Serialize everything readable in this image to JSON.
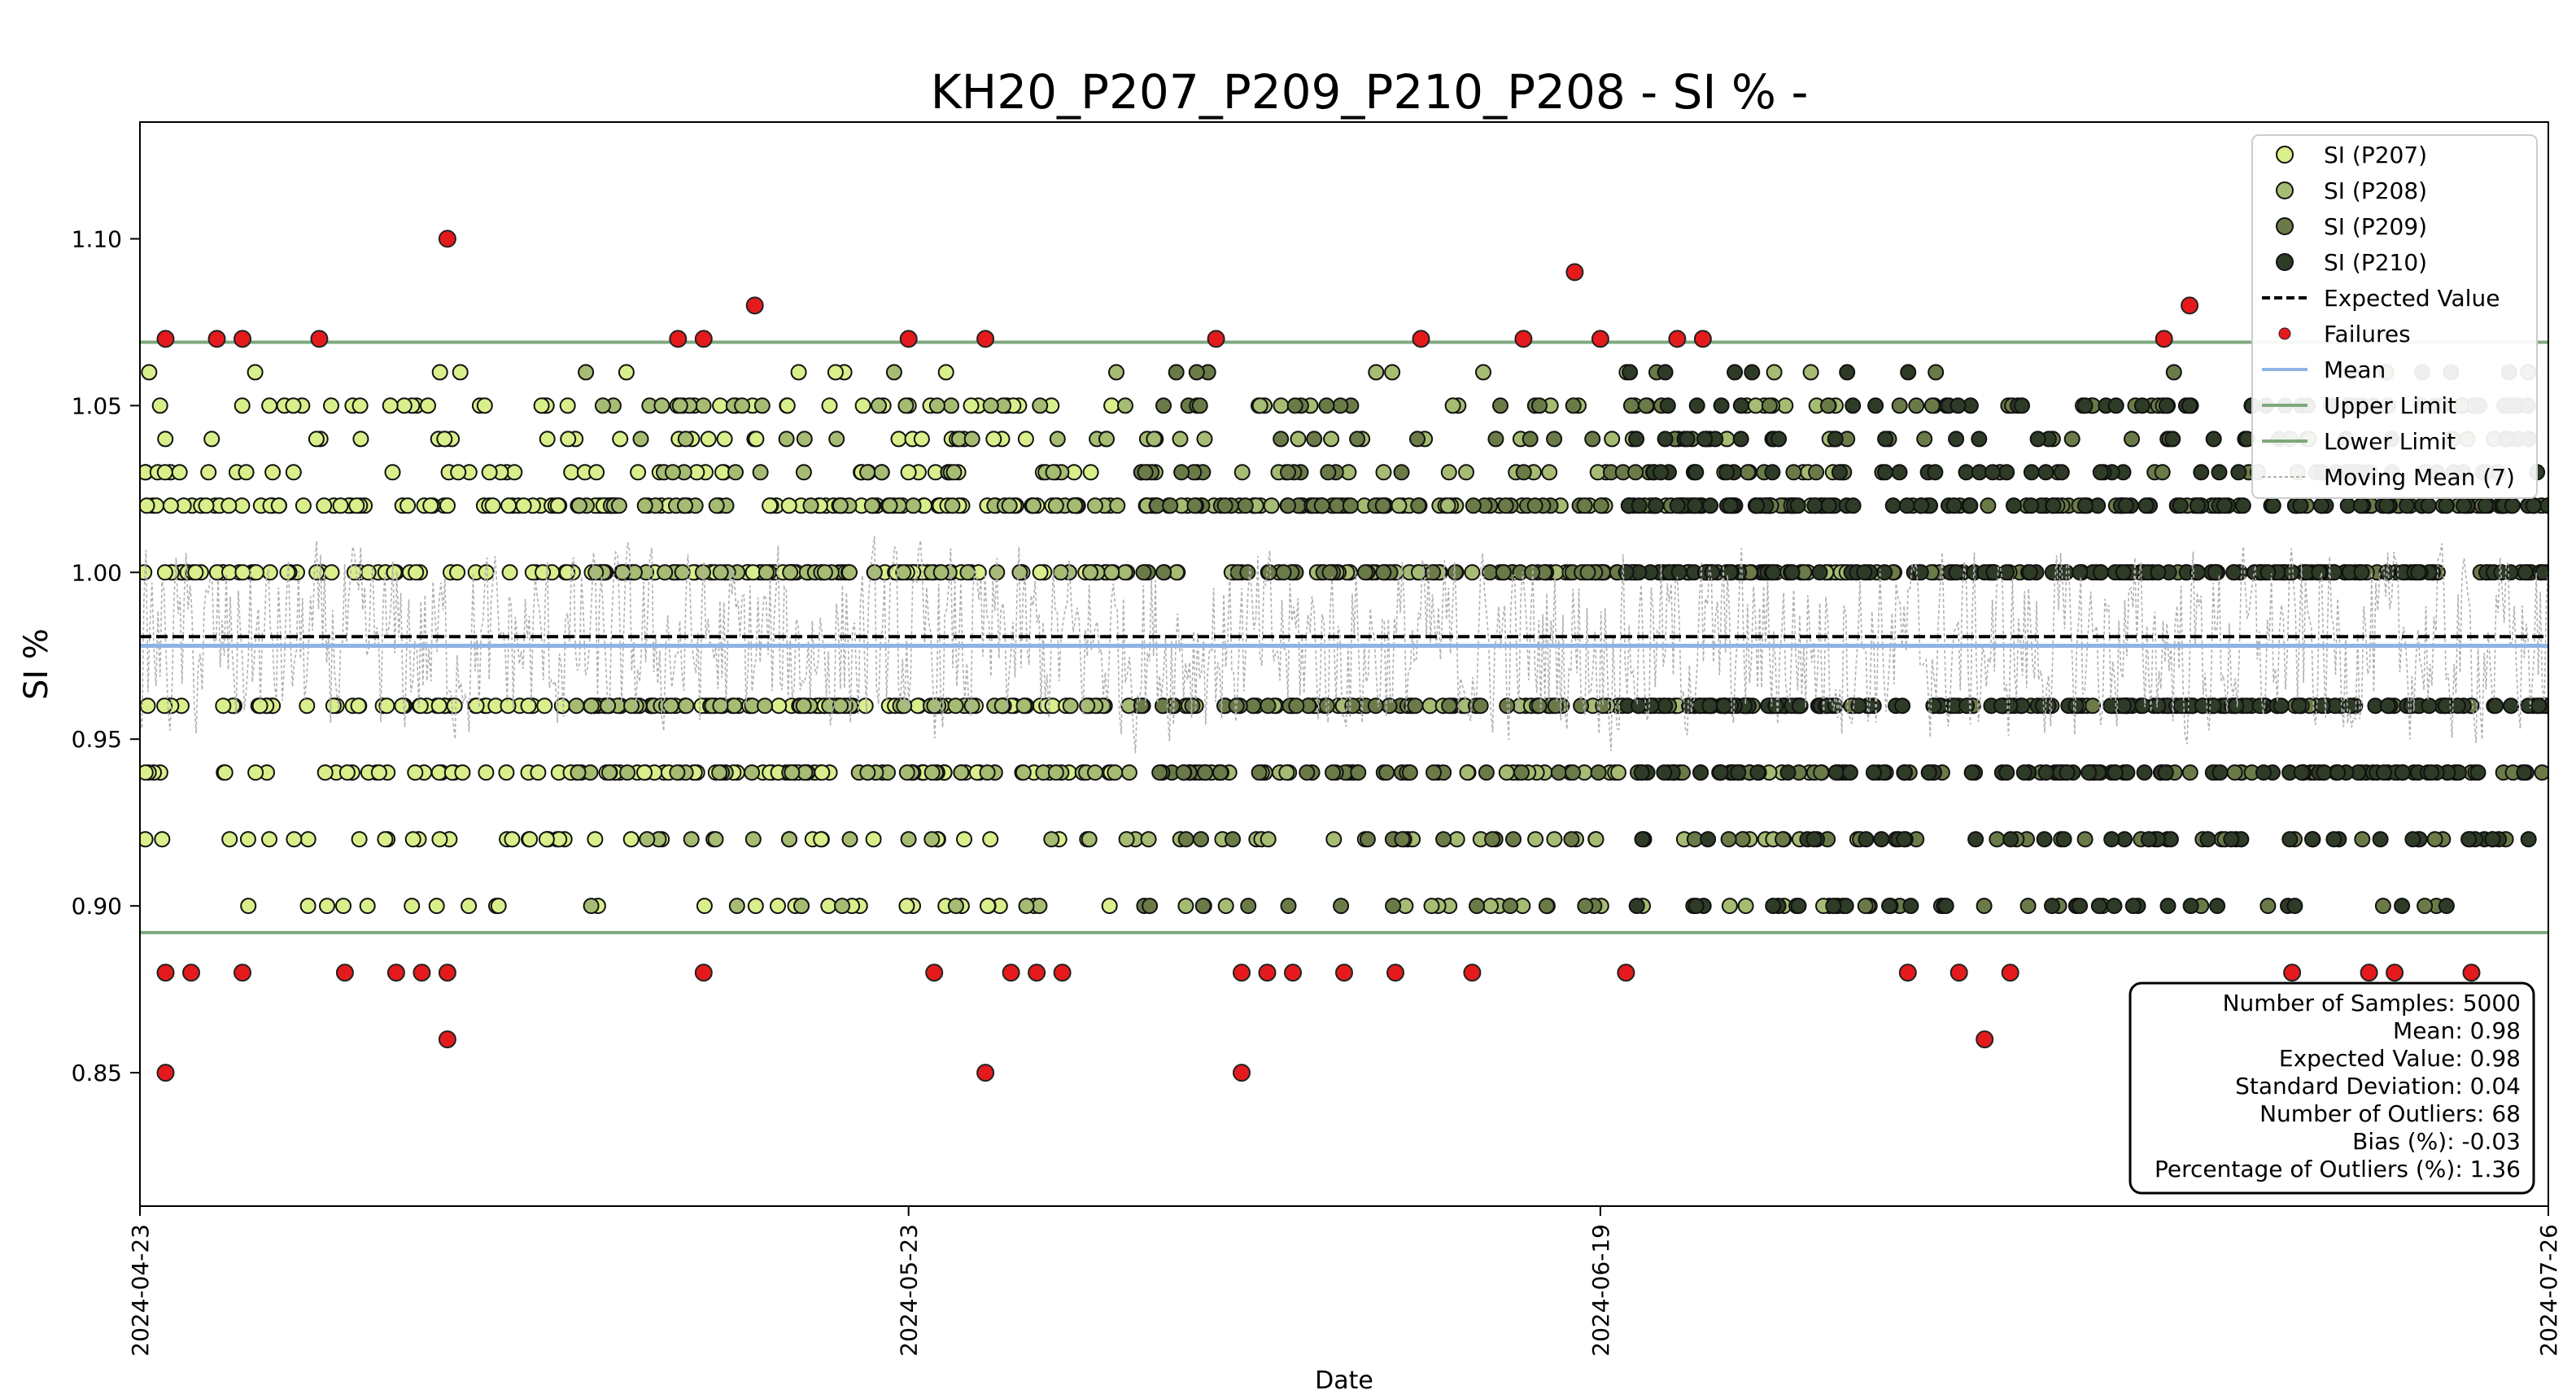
{
  "chart_data": {
    "type": "scatter",
    "title": "KH20_P207_P209_P210_P208 - SI % -",
    "xlabel": "Date",
    "ylabel": "SI %",
    "x_range": [
      "2024-04-23",
      "2024-07-26"
    ],
    "ylim": [
      0.81,
      1.135
    ],
    "x_ticks": [
      "2024-04-23",
      "2024-05-23",
      "2024-06-19",
      "2024-07-26"
    ],
    "y_ticks": [
      "0.85",
      "0.90",
      "0.95",
      "1.00",
      "1.05",
      "1.10"
    ],
    "y_tick_values": [
      0.85,
      0.9,
      0.95,
      1.0,
      1.05,
      1.1
    ],
    "grid": false,
    "legend_position": "top-right",
    "levels": [
      0.9,
      0.92,
      0.94,
      0.96,
      1.0,
      1.02,
      1.03,
      1.04,
      1.05,
      1.06
    ],
    "series": [
      {
        "name": "SI (P207)",
        "color": "#d9ef8b",
        "x_start": "2024-04-23",
        "x_end": "2024-05-31"
      },
      {
        "name": "SI (P208)",
        "color": "#a6bc72",
        "x_start": "2024-05-10",
        "x_end": "2024-06-30"
      },
      {
        "name": "SI (P209)",
        "color": "#6b7b48",
        "x_start": "2024-06-01",
        "x_end": "2024-07-26"
      },
      {
        "name": "SI (P210)",
        "color": "#2e3b26",
        "x_start": "2024-06-20",
        "x_end": "2024-07-26"
      }
    ],
    "expected_value": 0.98,
    "mean": 0.978,
    "upper_limit": 1.069,
    "lower_limit": 0.892,
    "moving_mean_window": 7,
    "failures": [
      {
        "x": "2024-04-24",
        "y": 1.07
      },
      {
        "x": "2024-04-26",
        "y": 1.07
      },
      {
        "x": "2024-04-27",
        "y": 1.07
      },
      {
        "x": "2024-04-30",
        "y": 1.07
      },
      {
        "x": "2024-05-05",
        "y": 1.1
      },
      {
        "x": "2024-05-14",
        "y": 1.07
      },
      {
        "x": "2024-05-15",
        "y": 1.07
      },
      {
        "x": "2024-05-17",
        "y": 1.08
      },
      {
        "x": "2024-05-23",
        "y": 1.07
      },
      {
        "x": "2024-05-26",
        "y": 1.07
      },
      {
        "x": "2024-06-04",
        "y": 1.07
      },
      {
        "x": "2024-06-12",
        "y": 1.07
      },
      {
        "x": "2024-06-16",
        "y": 1.07
      },
      {
        "x": "2024-06-18",
        "y": 1.09
      },
      {
        "x": "2024-06-19",
        "y": 1.07
      },
      {
        "x": "2024-06-22",
        "y": 1.07
      },
      {
        "x": "2024-06-23",
        "y": 1.07
      },
      {
        "x": "2024-07-11",
        "y": 1.07
      },
      {
        "x": "2024-07-12",
        "y": 1.08
      },
      {
        "x": "2024-04-24",
        "y": 0.88
      },
      {
        "x": "2024-04-25",
        "y": 0.88
      },
      {
        "x": "2024-04-24",
        "y": 0.85
      },
      {
        "x": "2024-04-27",
        "y": 0.88
      },
      {
        "x": "2024-05-01",
        "y": 0.88
      },
      {
        "x": "2024-05-03",
        "y": 0.88
      },
      {
        "x": "2024-05-04",
        "y": 0.88
      },
      {
        "x": "2024-05-05",
        "y": 0.86
      },
      {
        "x": "2024-05-05",
        "y": 0.88
      },
      {
        "x": "2024-05-15",
        "y": 0.88
      },
      {
        "x": "2024-05-24",
        "y": 0.88
      },
      {
        "x": "2024-05-26",
        "y": 0.85
      },
      {
        "x": "2024-05-27",
        "y": 0.88
      },
      {
        "x": "2024-05-28",
        "y": 0.88
      },
      {
        "x": "2024-05-29",
        "y": 0.88
      },
      {
        "x": "2024-06-05",
        "y": 0.88
      },
      {
        "x": "2024-06-05",
        "y": 0.85
      },
      {
        "x": "2024-06-06",
        "y": 0.88
      },
      {
        "x": "2024-06-07",
        "y": 0.88
      },
      {
        "x": "2024-06-09",
        "y": 0.88
      },
      {
        "x": "2024-06-11",
        "y": 0.88
      },
      {
        "x": "2024-06-14",
        "y": 0.88
      },
      {
        "x": "2024-06-20",
        "y": 0.88
      },
      {
        "x": "2024-07-01",
        "y": 0.88
      },
      {
        "x": "2024-07-03",
        "y": 0.88
      },
      {
        "x": "2024-07-04",
        "y": 0.86
      },
      {
        "x": "2024-07-05",
        "y": 0.88
      },
      {
        "x": "2024-07-16",
        "y": 0.88
      },
      {
        "x": "2024-07-19",
        "y": 0.88
      },
      {
        "x": "2024-07-20",
        "y": 0.88
      },
      {
        "x": "2024-07-23",
        "y": 0.88
      }
    ],
    "legend": [
      {
        "label": "SI (P207)",
        "kind": "marker",
        "color": "#d9ef8b"
      },
      {
        "label": "SI (P208)",
        "kind": "marker",
        "color": "#a6bc72"
      },
      {
        "label": "SI (P209)",
        "kind": "marker",
        "color": "#6b7b48"
      },
      {
        "label": "SI (P210)",
        "kind": "marker",
        "color": "#2e3b26"
      },
      {
        "label": "Expected Value",
        "kind": "dashed",
        "color": "#000000"
      },
      {
        "label": "Failures",
        "kind": "small-marker",
        "color": "#e41a1c"
      },
      {
        "label": "Mean",
        "kind": "line",
        "color": "#8fb3e6"
      },
      {
        "label": "Upper Limit",
        "kind": "line",
        "color": "#7ea87e"
      },
      {
        "label": "Lower Limit",
        "kind": "line",
        "color": "#7ea87e"
      },
      {
        "label": "Moving Mean (7)",
        "kind": "dotted",
        "color": "#b0b0b0"
      }
    ],
    "stats": [
      "Number of Samples: 5000",
      "Mean: 0.98",
      "Expected Value: 0.98",
      "Standard Deviation: 0.04",
      "Number of Outliers: 68",
      "Bias (%): -0.03",
      "Percentage of Outliers (%): 1.36"
    ],
    "colors": {
      "failure": "#e41a1c",
      "mean": "#8fb3e6",
      "limit": "#7ea87e",
      "expected": "#000000",
      "moving_mean": "#b0b0b0"
    }
  }
}
